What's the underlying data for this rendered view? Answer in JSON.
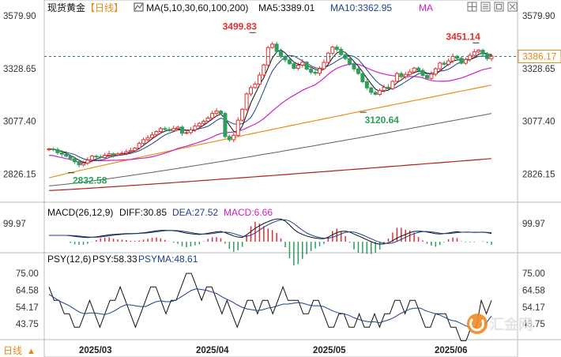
{
  "header": {
    "symbol": "现货黄金",
    "period": "【日线】",
    "ma_name": "MA(5,10,30,60,100,200)",
    "ma5": "MA5:3389.01",
    "ma10": "MA10:3362.95",
    "ma_more": "MA"
  },
  "macd_header": {
    "name": "MACD(26,12,9)",
    "diff": "DIFF:30.85",
    "dea": "DEA:27.52",
    "macd": "MACD:6.66"
  },
  "psy_header": {
    "name": "PSY(12,6)",
    "psy": "PSY:58.33",
    "psyma": "PSYMA:48.61"
  },
  "footer": {
    "period_button": "日线",
    "period_arrow": "▲",
    "dates": [
      "2025/03",
      "2025/04",
      "2025/05",
      "2025/06"
    ]
  },
  "watermark": "汇金网",
  "toolbar_icons": [
    "grid-icon",
    "indicator-icon",
    "compare-icon",
    "close-icon"
  ],
  "colors": {
    "up": "#e03030",
    "down": "#2e9e5a",
    "ma5": "#111111",
    "ma10": "#1f3f8f",
    "ma30": "#d020c0",
    "ma60": "#e8901a",
    "ma100": "#606060",
    "ma200": "#b02020",
    "price_line": "#2a7a7a",
    "psy": "#111111",
    "psyma": "#1f3f8f"
  },
  "chart_data": [
    {
      "type": "candlestick",
      "title": "现货黄金 日线",
      "y_ticks": [
        3579.9,
        3328.65,
        3077.4,
        2826.15
      ],
      "ylim": [
        2715,
        3580
      ],
      "current_price": 3386.17,
      "annotations": [
        {
          "label": "3499.83",
          "value": 3499.83,
          "kind": "high"
        },
        {
          "label": "3451.14",
          "value": 3451.14,
          "kind": "high"
        },
        {
          "label": "3120.64",
          "value": 3120.64,
          "kind": "low"
        },
        {
          "label": "2832.58",
          "value": 2832.58,
          "kind": "low"
        }
      ],
      "close_series": [
        2946,
        2943,
        2928,
        2921,
        2912,
        2900,
        2885,
        2870,
        2878,
        2893,
        2912,
        2909,
        2905,
        2916,
        2923,
        2917,
        2923,
        2926,
        2933,
        2938,
        2950,
        2973,
        2990,
        3000,
        3013,
        3029,
        3043,
        3039,
        3033,
        3043,
        3050,
        3021,
        3024,
        3037,
        3055,
        3068,
        3078,
        3093,
        3115,
        3126,
        3115,
        3005,
        2990,
        3011,
        3083,
        3135,
        3208,
        3238,
        3255,
        3298,
        3346,
        3429,
        3445,
        3410,
        3387,
        3370,
        3352,
        3330,
        3345,
        3359,
        3326,
        3311,
        3306,
        3328,
        3358,
        3402,
        3431,
        3420,
        3395,
        3376,
        3352,
        3327,
        3305,
        3266,
        3237,
        3215,
        3206,
        3224,
        3240,
        3233,
        3268,
        3305,
        3290,
        3301,
        3313,
        3331,
        3320,
        3296,
        3282,
        3302,
        3328,
        3355,
        3349,
        3365,
        3387,
        3378,
        3354,
        3372,
        3392,
        3408,
        3416,
        3398,
        3376,
        3389
      ],
      "ma_lines": [
        {
          "name": "MA5",
          "value": 3389.01
        },
        {
          "name": "MA10",
          "value": 3362.95
        },
        {
          "name": "MA30",
          "value": 3310
        },
        {
          "name": "MA60",
          "value": 3250
        },
        {
          "name": "MA100",
          "value": 3115
        },
        {
          "name": "MA200",
          "value": 2900
        }
      ]
    },
    {
      "type": "line",
      "title": "MACD(26,12,9)",
      "y_ticks": [
        99.97
      ],
      "series": [
        {
          "name": "DIFF",
          "last": 30.85
        },
        {
          "name": "DEA",
          "last": 27.52
        },
        {
          "name": "MACD",
          "last": 6.66
        }
      ]
    },
    {
      "type": "line",
      "title": "PSY(12,6)",
      "y_ticks": [
        75.0,
        64.58,
        54.17,
        43.75
      ],
      "ylim": [
        35,
        78
      ],
      "series": [
        {
          "name": "PSY",
          "last": 58.33
        },
        {
          "name": "PSYMA",
          "last": 48.61
        }
      ],
      "psy_values": [
        66.67,
        58.33,
        58.33,
        50.0,
        50.0,
        41.67,
        41.67,
        50.0,
        58.33,
        50.0,
        41.67,
        50.0,
        58.33,
        58.33,
        66.67,
        58.33,
        50.0,
        41.67,
        50.0,
        58.33,
        66.67,
        66.67,
        58.33,
        50.0,
        58.33,
        58.33,
        66.67,
        75.0,
        75.0,
        66.67,
        58.33,
        66.67,
        66.67,
        58.33,
        50.0,
        58.33,
        50.0,
        41.67,
        50.0,
        58.33,
        58.33,
        50.0,
        58.33,
        58.33,
        50.0,
        58.33,
        66.67,
        58.33,
        58.33,
        58.33,
        50.0,
        50.0,
        58.33,
        58.33,
        50.0,
        41.67,
        41.67,
        50.0,
        50.0,
        41.67,
        41.67,
        50.0,
        41.67,
        41.67,
        50.0,
        41.67,
        50.0,
        50.0,
        58.33,
        58.33,
        50.0,
        58.33,
        58.33,
        50.0,
        41.67,
        41.67,
        50.0,
        50.0,
        50.0,
        41.67,
        41.67,
        33.33,
        33.33,
        41.67,
        41.67,
        58.33,
        50.0,
        58.33
      ],
      "psyma_values": [
        62.0,
        60.0,
        58.0,
        56.5,
        55.0,
        53.0,
        51.0,
        50.0,
        50.5,
        50.5,
        50.0,
        49.5,
        50.5,
        52.0,
        54.0,
        55.5,
        55.5,
        55.0,
        54.5,
        54.5,
        56.0,
        57.5,
        58.0,
        57.5,
        57.5,
        58.5,
        60.5,
        62.5,
        64.5,
        65.5,
        65.0,
        64.5,
        63.5,
        62.5,
        60.5,
        59.0,
        57.5,
        55.5,
        54.0,
        53.0,
        52.5,
        52.0,
        52.5,
        53.5,
        54.0,
        55.0,
        56.0,
        56.0,
        56.5,
        57.0,
        56.5,
        55.5,
        55.0,
        55.0,
        54.5,
        53.0,
        51.5,
        50.5,
        50.0,
        49.0,
        47.5,
        46.5,
        45.5,
        45.0,
        45.0,
        44.5,
        45.5,
        46.5,
        48.0,
        50.0,
        51.5,
        53.0,
        53.5,
        53.5,
        52.0,
        51.0,
        50.0,
        49.0,
        47.5,
        46.0,
        45.5,
        44.0,
        42.5,
        41.5,
        40.0,
        42.0,
        44.5,
        48.61
      ]
    }
  ]
}
